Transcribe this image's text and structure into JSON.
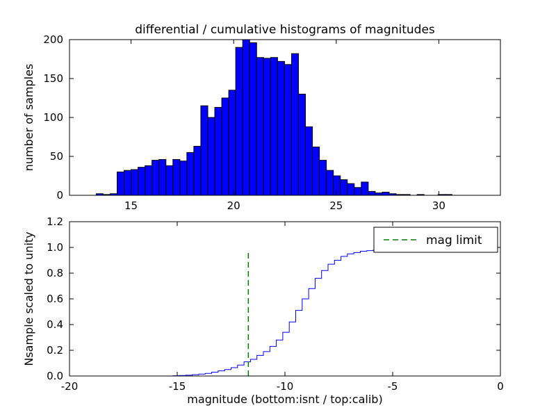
{
  "figure": {
    "background": "#ffffff",
    "text_color": "#000000"
  },
  "chart_data": [
    {
      "type": "bar",
      "subplot": "top",
      "title": "differential / cumulative histograms of magnitudes",
      "xlabel": "",
      "ylabel": "number of samples",
      "xlim": [
        12,
        33
      ],
      "ylim": [
        0,
        200
      ],
      "xticks": [
        15,
        20,
        25,
        30
      ],
      "xtick_labels": [
        "15",
        "20",
        "25",
        "30"
      ],
      "yticks": [
        0,
        50,
        100,
        150,
        200
      ],
      "ytick_labels": [
        "0",
        "50",
        "100",
        "150",
        "200"
      ],
      "grid": false,
      "bar_color": "#0000ff",
      "bar_edge_color": "#000000",
      "bins_start": 13.3,
      "bin_width": 0.34,
      "counts": [
        2,
        1,
        2,
        30,
        32,
        33,
        36,
        38,
        45,
        46,
        38,
        46,
        44,
        55,
        63,
        115,
        100,
        113,
        125,
        135,
        190,
        200,
        196,
        177,
        176,
        177,
        172,
        168,
        182,
        130,
        88,
        62,
        45,
        32,
        25,
        20,
        15,
        10,
        17,
        5,
        3,
        4,
        2,
        1,
        1,
        0,
        1,
        0,
        0,
        1,
        1
      ]
    },
    {
      "type": "line",
      "subplot": "bottom",
      "title": "",
      "xlabel": "magnitude (bottom:isnt / top:calib)",
      "ylabel": "Nsample scaled to unity",
      "xlim": [
        -20,
        0
      ],
      "ylim": [
        0,
        1.2
      ],
      "xticks": [
        -20,
        -15,
        -10,
        -5,
        0
      ],
      "xtick_labels": [
        "-20",
        "-15",
        "-10",
        "-5",
        "0"
      ],
      "yticks": [
        0,
        0.2,
        0.4,
        0.6,
        0.8,
        1.0,
        1.2
      ],
      "ytick_labels": [
        "0.0",
        "0.2",
        "0.4",
        "0.6",
        "0.8",
        "1.0",
        "1.2"
      ],
      "grid": false,
      "line_color": "#0000ff",
      "step_style": true,
      "x": [
        -20,
        -15.5,
        -15.2,
        -14.9,
        -14.6,
        -14.3,
        -14.0,
        -13.7,
        -13.4,
        -13.1,
        -12.8,
        -12.5,
        -12.2,
        -11.9,
        -11.6,
        -11.3,
        -11.0,
        -10.7,
        -10.4,
        -10.1,
        -9.8,
        -9.5,
        -9.2,
        -8.9,
        -8.6,
        -8.3,
        -8.0,
        -7.7,
        -7.4,
        -7.1,
        -6.8,
        -6.5,
        -6.2,
        -5.9,
        -5.6,
        -5.3,
        -5.0,
        -4.5,
        -4.0,
        -3.5,
        -3.0,
        -2.0,
        -1.0,
        0
      ],
      "y": [
        0,
        0,
        0.002,
        0.004,
        0.006,
        0.01,
        0.015,
        0.02,
        0.03,
        0.04,
        0.05,
        0.065,
        0.085,
        0.11,
        0.13,
        0.16,
        0.19,
        0.23,
        0.28,
        0.34,
        0.42,
        0.51,
        0.6,
        0.68,
        0.76,
        0.82,
        0.87,
        0.9,
        0.93,
        0.95,
        0.96,
        0.97,
        0.975,
        0.98,
        0.985,
        0.99,
        0.992,
        0.994,
        0.996,
        0.997,
        0.998,
        0.999,
        1.0,
        1.0
      ],
      "vline": {
        "x": -11.7,
        "y_top": 0.96,
        "color": "#008000",
        "style": "dashed"
      },
      "legend_label": "mag limit",
      "legend_position": "upper right"
    }
  ]
}
